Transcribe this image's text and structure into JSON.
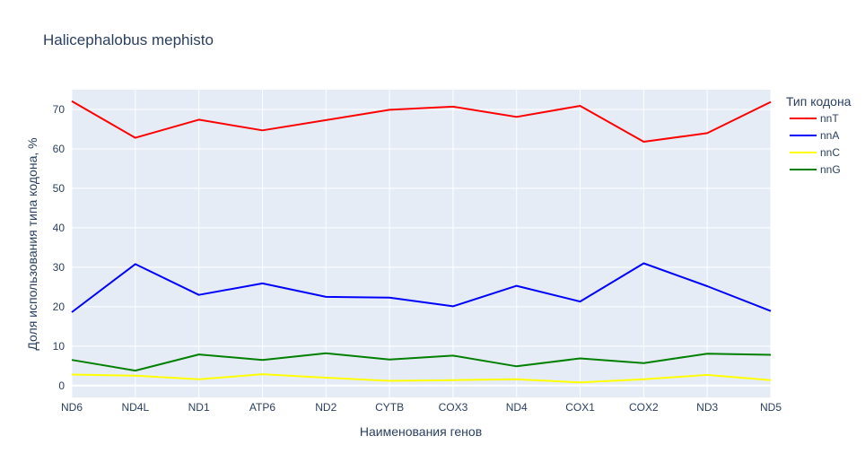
{
  "chart_data": {
    "type": "line",
    "title": "Halicephalobus mephisto",
    "xlabel": "Наименования генов",
    "ylabel": "Доля использования типа кодона, %",
    "legend_title": "Тип кодона",
    "legend_position": "top-right",
    "grid": true,
    "ylim": [
      -3,
      75
    ],
    "yticks": [
      "0",
      "10",
      "20",
      "30",
      "40",
      "50",
      "60",
      "70"
    ],
    "categories": [
      "ND6",
      "ND4L",
      "ND1",
      "ATP6",
      "ND2",
      "CYTB",
      "COX3",
      "ND4",
      "COX1",
      "COX2",
      "ND3",
      "ND5"
    ],
    "series": [
      {
        "name": "nnT",
        "color": "#ff0000",
        "values": [
          72.1,
          62.8,
          67.4,
          64.7,
          67.3,
          69.9,
          70.7,
          68.1,
          70.9,
          61.8,
          64.0,
          71.9
        ]
      },
      {
        "name": "nnA",
        "color": "#0000ff",
        "values": [
          18.6,
          30.8,
          23.0,
          25.9,
          22.5,
          22.3,
          20.1,
          25.3,
          21.3,
          31.0,
          25.2,
          18.9
        ]
      },
      {
        "name": "nnC",
        "color": "#ffff00",
        "values": [
          2.8,
          2.5,
          1.6,
          2.9,
          2.0,
          1.2,
          1.4,
          1.6,
          0.8,
          1.6,
          2.7,
          1.4
        ]
      },
      {
        "name": "nnG",
        "color": "#008000",
        "values": [
          6.5,
          3.8,
          7.9,
          6.5,
          8.2,
          6.6,
          7.6,
          4.9,
          6.9,
          5.7,
          8.1,
          7.8
        ]
      }
    ]
  }
}
